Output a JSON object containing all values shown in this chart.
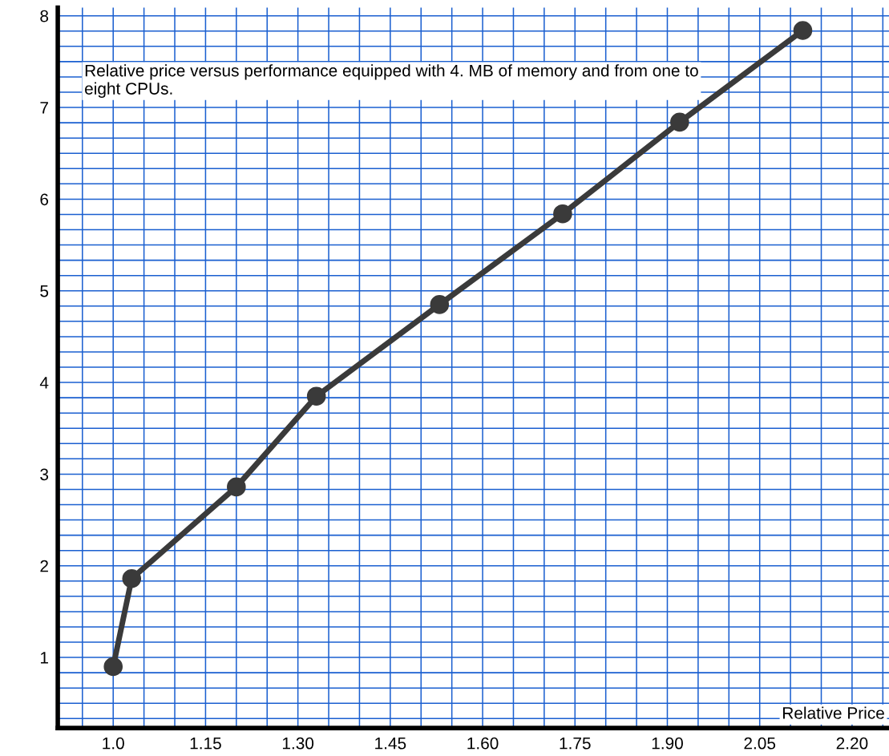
{
  "chart_data": {
    "type": "line",
    "xlabel": "Relative Price",
    "x": [
      1.0,
      1.03,
      1.2,
      1.33,
      1.53,
      1.73,
      1.92,
      2.12
    ],
    "values": [
      0.9,
      1.86,
      2.86,
      3.85,
      4.85,
      5.84,
      6.84,
      7.84
    ],
    "color": "#3a3a3a",
    "marker": "circle",
    "line_style": "solid",
    "xlim": [
      0.91,
      2.26
    ],
    "xticks": [
      {
        "value": 1.0,
        "label": "1.0"
      },
      {
        "value": 1.15,
        "label": "1.15"
      },
      {
        "value": 1.3,
        "label": "1.30"
      },
      {
        "value": 1.45,
        "label": "1.45"
      },
      {
        "value": 1.6,
        "label": "1.60"
      },
      {
        "value": 1.75,
        "label": "1.75"
      },
      {
        "value": 1.9,
        "label": "1.90"
      },
      {
        "value": 2.05,
        "label": "2.05"
      },
      {
        "value": 2.2,
        "label": "2.20"
      }
    ],
    "ylim": [
      0.23,
      8.09
    ],
    "yticks": [
      1,
      2,
      3,
      4,
      5,
      6,
      7,
      8
    ],
    "grid": true,
    "annotations": [
      "Relative price versus performance equipped with 4. MB of memory and from one to eight CPUs."
    ]
  }
}
